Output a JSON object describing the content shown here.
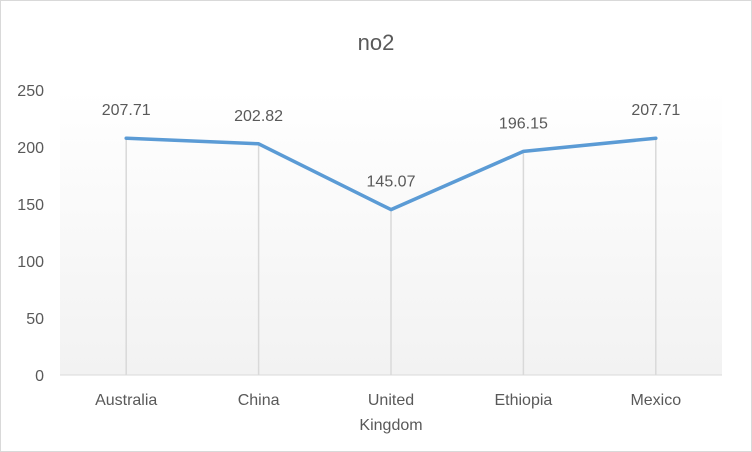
{
  "chart_data": {
    "type": "line",
    "title": "no2",
    "categories": [
      [
        "Australia"
      ],
      [
        "China"
      ],
      [
        "United",
        "Kingdom"
      ],
      [
        "Ethiopia"
      ],
      [
        "Mexico"
      ]
    ],
    "series": [
      {
        "values": [
          207.71,
          202.82,
          145.07,
          196.15,
          207.71
        ],
        "color": "#5b9bd5"
      }
    ],
    "data_labels": [
      "207.71",
      "202.82",
      "145.07",
      "196.15",
      "207.71"
    ],
    "ylim": [
      0,
      250
    ],
    "yticks": [
      0,
      50,
      100,
      150,
      200,
      250
    ],
    "grid": "vertical drop lines, no horizontal gridlines",
    "legend": "none"
  }
}
